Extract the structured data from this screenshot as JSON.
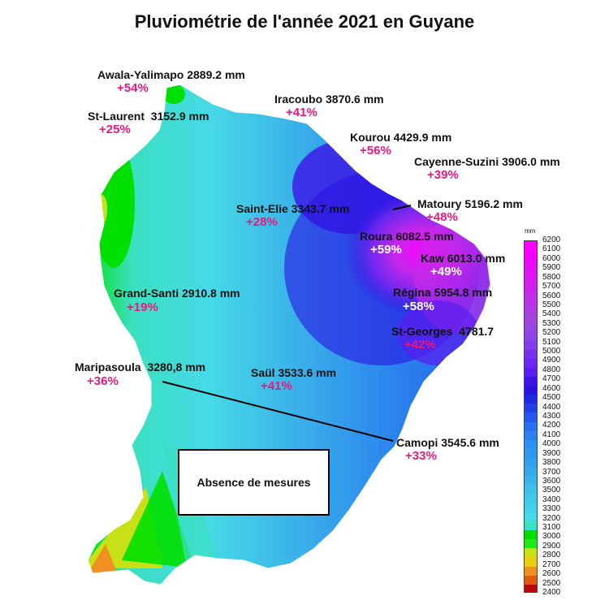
{
  "title": "Pluviométrie de l'année 2021 en Guyane",
  "no_data_label": "Absence de mesures",
  "stations": [
    {
      "name": "Awala-Yalimapo",
      "rain": "2889.2 mm",
      "delta": "+54%",
      "delta_white": false
    },
    {
      "name": "Iracoubo",
      "rain": "3870.6 mm",
      "delta": "+41%",
      "delta_white": false
    },
    {
      "name": "St-Laurent",
      "rain": "3152.9 mm",
      "delta": "+25%",
      "delta_white": false
    },
    {
      "name": "Kourou",
      "rain": "4429.9 mm",
      "delta": "+56%",
      "delta_white": false
    },
    {
      "name": "Cayenne-Suzini",
      "rain": "3906.0 mm",
      "delta": "+39%",
      "delta_white": false
    },
    {
      "name": "Matoury",
      "rain": "5196.2 mm",
      "delta": "+48%",
      "delta_white": false
    },
    {
      "name": "Saint-Elie",
      "rain": "3343.7 mm",
      "delta": "+28%",
      "delta_white": false
    },
    {
      "name": "Roura",
      "rain": "6082.5 mm",
      "delta": "+59%",
      "delta_white": true
    },
    {
      "name": "Kaw",
      "rain": "6013.0 mm",
      "delta": "+49%",
      "delta_white": true
    },
    {
      "name": "Grand-Santi",
      "rain": "2910.8 mm",
      "delta": "+19%",
      "delta_white": false
    },
    {
      "name": "Régina",
      "rain": "5954.8 mm",
      "delta": "+58%",
      "delta_white": true
    },
    {
      "name": "St-Georges",
      "rain": "4781.7",
      "delta": "+42%",
      "delta_white": false
    },
    {
      "name": "Maripasoula",
      "rain": "3280,8 mm",
      "delta": "+36%",
      "delta_white": false
    },
    {
      "name": "Saül",
      "rain": "3533.6 mm",
      "delta": "+41%",
      "delta_white": false
    },
    {
      "name": "Camopi",
      "rain": "3545.6 mm",
      "delta": "+33%",
      "delta_white": false
    }
  ],
  "legend": {
    "unit": "mm",
    "ticks": [
      "6200",
      "6100",
      "6000",
      "5900",
      "5800",
      "5700",
      "5600",
      "5500",
      "5400",
      "5300",
      "5200",
      "5100",
      "5000",
      "4900",
      "4800",
      "4700",
      "4600",
      "4500",
      "4400",
      "4300",
      "4200",
      "4100",
      "4000",
      "3900",
      "3800",
      "3700",
      "3600",
      "3500",
      "3400",
      "3300",
      "3200",
      "3100",
      "3000",
      "2900",
      "2800",
      "2700",
      "2600",
      "2500",
      "2400"
    ],
    "colors": [
      "#ff00ff",
      "#f500fa",
      "#ea0af6",
      "#df14f2",
      "#d41eee",
      "#c828ea",
      "#bc32e6",
      "#b03ce2",
      "#a446de",
      "#9a46e0",
      "#8e46e4",
      "#823ce8",
      "#7532ec",
      "#6828ee",
      "#5a1ef0",
      "#3c14e6",
      "#2a14e2",
      "#2028e0",
      "#2240e4",
      "#2458e8",
      "#2870ec",
      "#2a82ee",
      "#2e90f0",
      "#3098ee",
      "#34a0ec",
      "#38aaea",
      "#3cb4e8",
      "#3ec0e6",
      "#40cae8",
      "#44d2ea",
      "#46dae6",
      "#3ae0c0",
      "#00e000",
      "#22e81a",
      "#c8e016",
      "#e8d010",
      "#f09020",
      "#e05a14",
      "#b40c0c"
    ]
  }
}
